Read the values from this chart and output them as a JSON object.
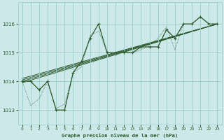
{
  "title": "Graphe pression niveau de la mer (hPa)",
  "bg_color": "#cce8e8",
  "grid_color": "#99cccc",
  "line_color": "#2d5a2d",
  "xlim": [
    -0.5,
    23.5
  ],
  "ylim": [
    1012.5,
    1016.75
  ],
  "yticks": [
    1013,
    1014,
    1015,
    1016
  ],
  "xticks": [
    0,
    1,
    2,
    3,
    4,
    5,
    6,
    7,
    8,
    9,
    10,
    11,
    12,
    13,
    14,
    15,
    16,
    17,
    18,
    19,
    20,
    21,
    22,
    23
  ],
  "main_x": [
    0,
    1,
    2,
    3,
    4,
    5,
    6,
    7,
    8,
    9,
    10,
    11,
    12,
    13,
    14,
    15,
    16,
    17,
    18,
    19,
    20,
    21,
    22,
    23
  ],
  "main_y": [
    1014.0,
    1014.0,
    1013.7,
    1014.0,
    1013.0,
    1013.0,
    1014.3,
    1014.7,
    1015.5,
    1016.0,
    1015.0,
    1015.0,
    1015.0,
    1015.0,
    1015.2,
    1015.2,
    1015.2,
    1015.8,
    1015.5,
    1016.0,
    1016.0,
    1016.25,
    1016.0,
    1016.0
  ],
  "dotted_x": [
    0,
    1,
    2,
    3,
    4,
    5,
    6,
    7,
    8,
    9,
    10,
    11,
    12,
    13,
    14,
    15,
    16,
    17,
    18,
    19,
    20,
    21,
    22,
    23
  ],
  "dotted_y": [
    1014.0,
    1013.15,
    1013.4,
    1014.0,
    1013.05,
    1013.2,
    1014.3,
    1014.5,
    1015.6,
    1015.75,
    1015.05,
    1014.9,
    1015.05,
    1015.0,
    1015.1,
    1015.25,
    1015.5,
    1015.9,
    1015.1,
    1016.0,
    1016.0,
    1016.25,
    1016.0,
    1016.0
  ],
  "reg_lines": [
    {
      "x0": 0.0,
      "y0": 1013.95,
      "x1": 23.0,
      "y1": 1016.0
    },
    {
      "x0": 0.0,
      "y0": 1014.0,
      "x1": 23.0,
      "y1": 1016.0
    },
    {
      "x0": 0.0,
      "y0": 1014.05,
      "x1": 23.0,
      "y1": 1016.0
    },
    {
      "x0": 0.0,
      "y0": 1014.1,
      "x1": 23.0,
      "y1": 1016.0
    }
  ]
}
